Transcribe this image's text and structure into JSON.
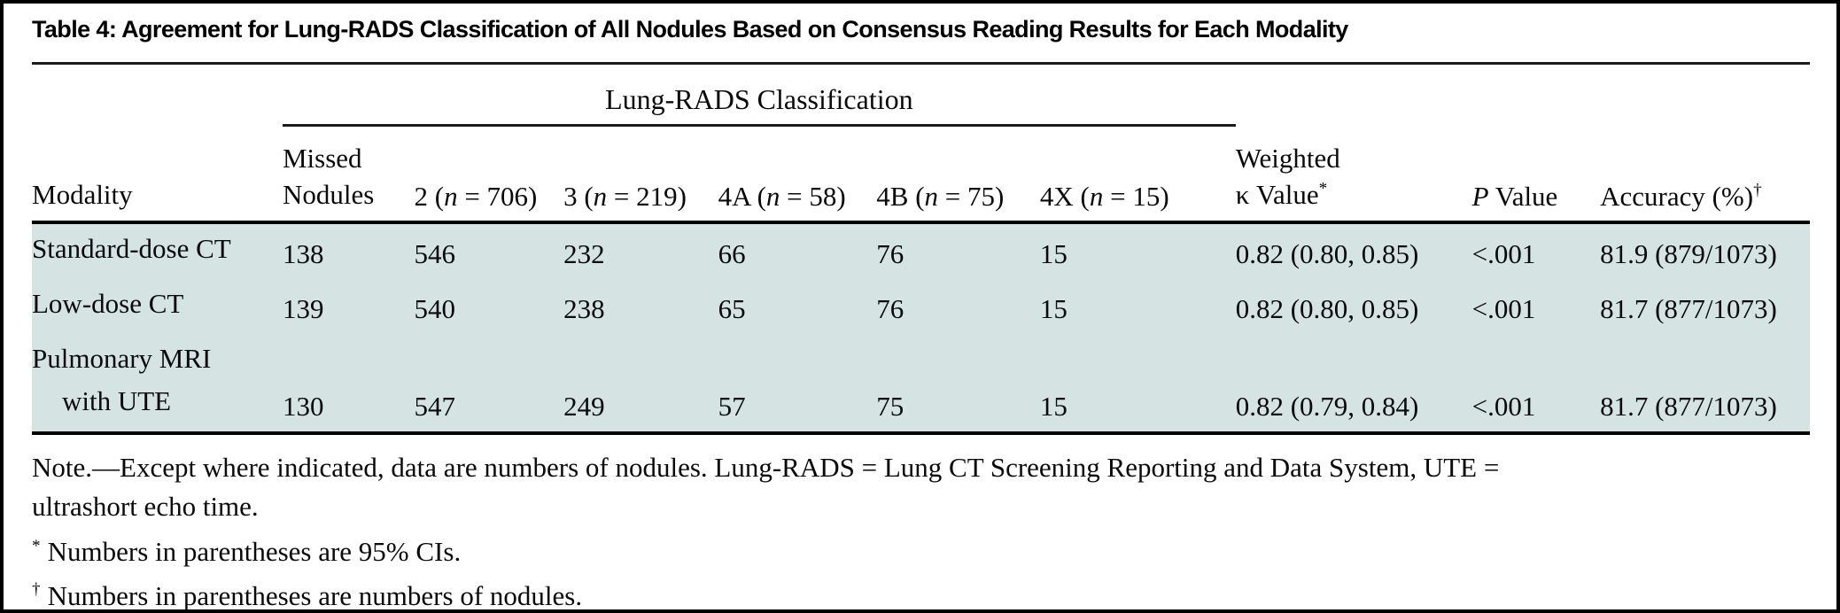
{
  "title": "Table 4: Agreement for Lung-RADS Classification of All Nodules Based on Consensus Reading Results for Each Modality",
  "table": {
    "spanner_label": "Lung-RADS Classification",
    "headers": {
      "modality": "Modality",
      "missed": {
        "line1": "Missed",
        "line2": "Nodules"
      },
      "lr2": {
        "pre": "2 (",
        "it": "n",
        "post": " = 706)"
      },
      "lr3": {
        "pre": "3 (",
        "it": "n",
        "post": " = 219)"
      },
      "lr4a": {
        "pre": "4A (",
        "it": "n",
        "post": " = 58)"
      },
      "lr4b": {
        "pre": "4B (",
        "it": "n",
        "post": " = 75)"
      },
      "lr4x": {
        "pre": "4X (",
        "it": "n",
        "post": " = 15)"
      },
      "kappa": {
        "line1": "Weighted",
        "line2": "κ Value",
        "sup": "*"
      },
      "p": {
        "it": "P",
        "post": " Value"
      },
      "accuracy": {
        "text": "Accuracy (%)",
        "sup": "†"
      }
    },
    "rows": [
      {
        "modality_line1": "Standard-dose CT",
        "modality_line2": "",
        "missed": "138",
        "lr2": "546",
        "lr3": "232",
        "lr4a": "66",
        "lr4b": "76",
        "lr4x": "15",
        "kappa": "0.82 (0.80, 0.85)",
        "p": "<.001",
        "accuracy": "81.9 (879/1073)"
      },
      {
        "modality_line1": "Low-dose CT",
        "modality_line2": "",
        "missed": "139",
        "lr2": "540",
        "lr3": "238",
        "lr4a": "65",
        "lr4b": "76",
        "lr4x": "15",
        "kappa": "0.82 (0.80, 0.85)",
        "p": "<.001",
        "accuracy": "81.7 (877/1073)"
      },
      {
        "modality_line1": "Pulmonary MRI",
        "modality_line2": "with UTE",
        "missed": "130",
        "lr2": "547",
        "lr3": "249",
        "lr4a": "57",
        "lr4b": "75",
        "lr4x": "15",
        "kappa": "0.82 (0.79, 0.84)",
        "p": "<.001",
        "accuracy": "81.7 (877/1073)"
      }
    ]
  },
  "notes": {
    "note_line1": "Note.—Except where indicated, data are numbers of nodules. Lung-RADS = Lung CT Screening Reporting and Data System, UTE =",
    "note_line2": "ultrashort echo time.",
    "star": {
      "symbol": "*",
      "text": "Numbers in parentheses are 95% CIs."
    },
    "dagger": {
      "symbol": "†",
      "text": "Numbers in parentheses are numbers of nodules."
    }
  },
  "colors": {
    "row_band": "#d5e3e3",
    "rule": "#000000",
    "text": "#0a0a0a",
    "background": "#ffffff"
  }
}
